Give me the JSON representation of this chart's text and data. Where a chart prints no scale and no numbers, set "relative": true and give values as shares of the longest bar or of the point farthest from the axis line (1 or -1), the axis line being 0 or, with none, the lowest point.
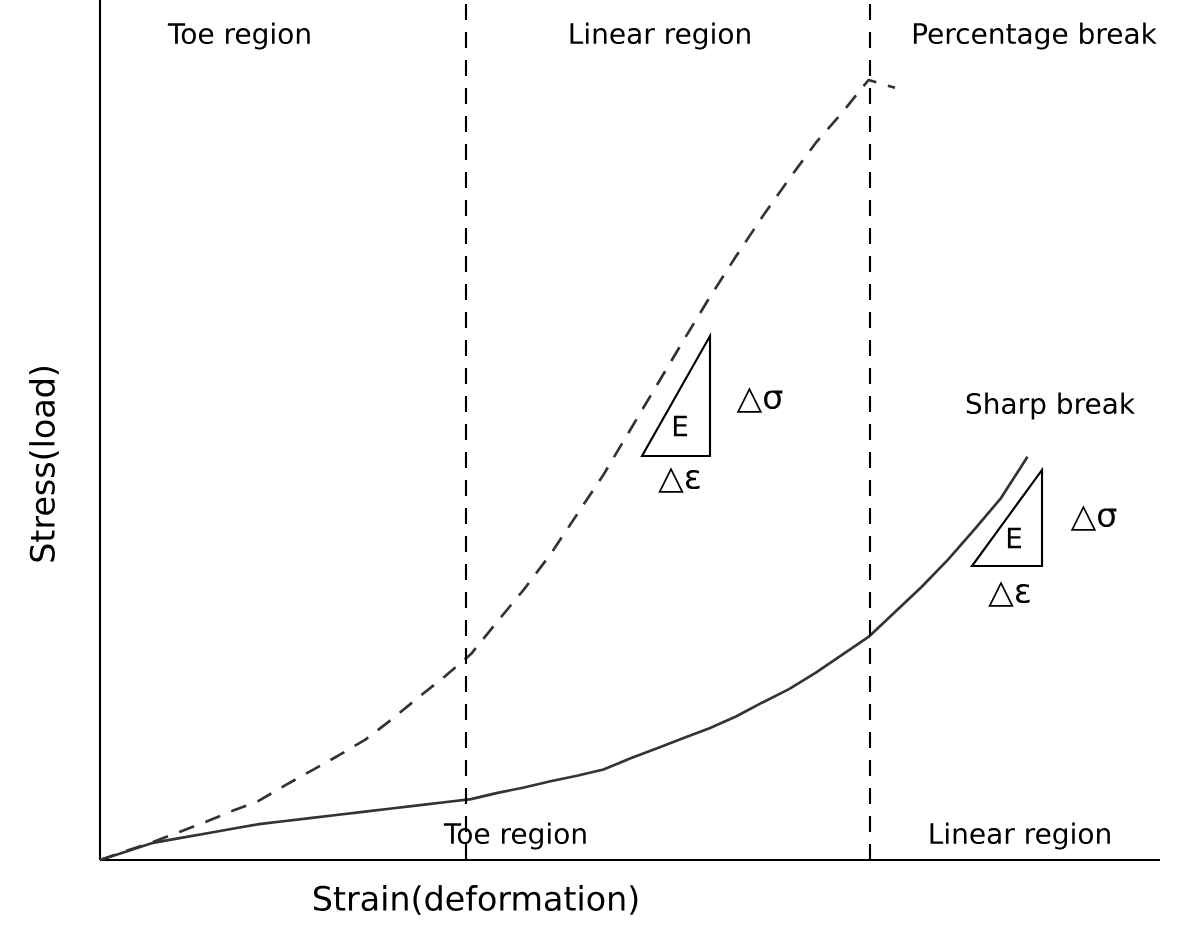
{
  "chart_data": {
    "type": "line",
    "relative": true,
    "xlabel": "Strain(deformation)",
    "ylabel": "Stress(load)",
    "marker": "none",
    "categories": [
      null,
      null,
      null,
      null,
      null,
      null,
      null,
      null,
      null,
      null,
      null,
      null,
      null,
      null,
      null,
      null,
      null,
      null,
      null,
      null,
      null,
      null,
      null,
      null,
      null,
      null,
      null,
      null,
      null,
      null,
      null,
      null,
      null,
      null,
      null,
      null,
      null,
      null,
      null,
      null,
      null
    ],
    "series": [
      {
        "color": "#333333",
        "line_style": "dashed",
        "values": [
          0,
          0.012,
          0.023,
          0.036,
          0.049,
          0.063,
          0.076,
          0.096,
          0.115,
          0.134,
          0.154,
          0.18,
          0.208,
          0.235,
          0.264,
          0.306,
          0.347,
          0.392,
          0.443,
          0.494,
          0.551,
          0.608,
          0.665,
          0.721,
          0.774,
          0.825,
          0.873,
          0.919,
          0.958,
          1,
          0.99,
          null,
          null,
          null,
          null,
          null,
          null,
          null,
          null,
          null,
          null
        ]
      },
      {
        "color": "#333333",
        "line_style": "solid",
        "values": [
          0,
          0.011,
          0.022,
          0.028,
          0.034,
          0.04,
          0.046,
          0.05,
          0.054,
          0.058,
          0.062,
          0.066,
          0.07,
          0.074,
          0.078,
          0.086,
          0.093,
          0.101,
          0.108,
          0.116,
          0.13,
          0.143,
          0.156,
          0.169,
          0.184,
          0.202,
          0.219,
          0.24,
          0.263,
          0.286,
          0.318,
          0.35,
          0.385,
          0.424,
          0.464,
          0.517,
          null,
          null,
          null,
          null,
          null
        ]
      }
    ],
    "annotations": [
      "Toe region",
      "Linear region",
      "Percentage break",
      "Toe region",
      "Linear region",
      "Sharp break",
      "E",
      "△σ",
      "△ε",
      "E",
      "△σ",
      "△ε"
    ]
  }
}
